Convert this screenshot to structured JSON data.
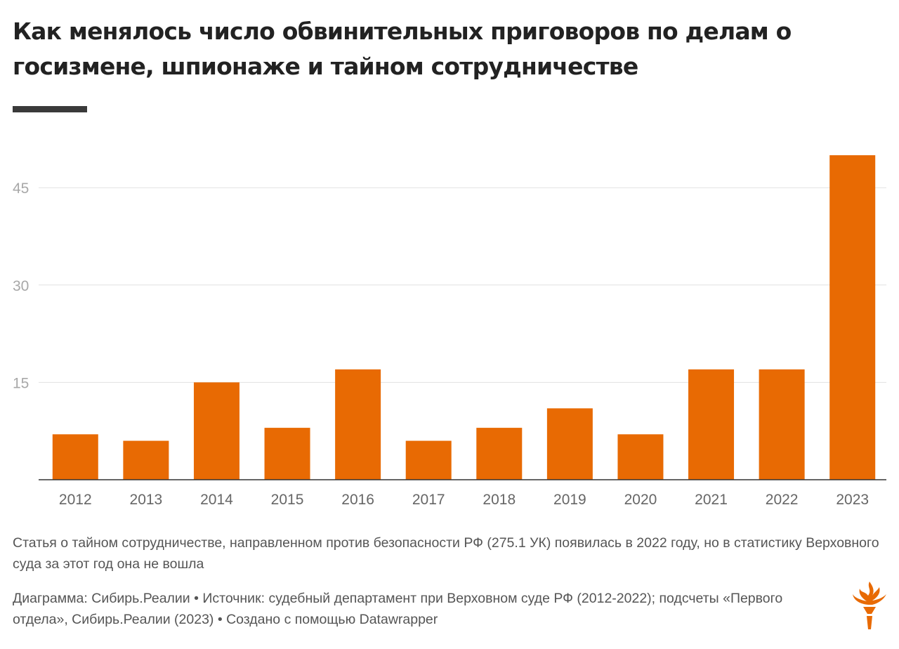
{
  "header": {
    "title": "Как менялось число обвинительных приговоров по делам о госизмене, шпионаже и тайном сотрудничестве"
  },
  "chart_data": {
    "type": "bar",
    "title": "Как менялось число обвинительных приговоров по делам о госизмене, шпионаже и тайном сотрудничестве",
    "xlabel": "",
    "ylabel": "",
    "categories": [
      "2012",
      "2013",
      "2014",
      "2015",
      "2016",
      "2017",
      "2018",
      "2019",
      "2020",
      "2021",
      "2022",
      "2023"
    ],
    "values": [
      7,
      6,
      15,
      8,
      17,
      6,
      8,
      11,
      7,
      17,
      17,
      50
    ],
    "ylim": [
      0,
      50
    ],
    "yticks": [
      {
        "value": 15,
        "label": "15"
      },
      {
        "value": 30,
        "label": "30"
      },
      {
        "value": 45,
        "label": "45"
      }
    ],
    "grid": true,
    "legend": "none",
    "colors": {
      "bar": "#e86a03",
      "grid": "#e1e1e1",
      "axis": "#333333"
    }
  },
  "footer": {
    "note": "Статья о тайном сотрудничестве, направленном против безопасности РФ (275.1 УК) появилась в 2022 году, но в статистику Верховного суда за этот год она не вошла",
    "credits": "Диаграмма: Сибирь.Реалии • Источник: судебный департамент при Верховном суде РФ (2012-2022); подсчеты «Первого отдела», Сибирь.Реалии (2023) • Создано с помощью Datawrapper",
    "logo_icon": "rfe-torch-logo-icon",
    "logo_color": "#e86a03"
  }
}
